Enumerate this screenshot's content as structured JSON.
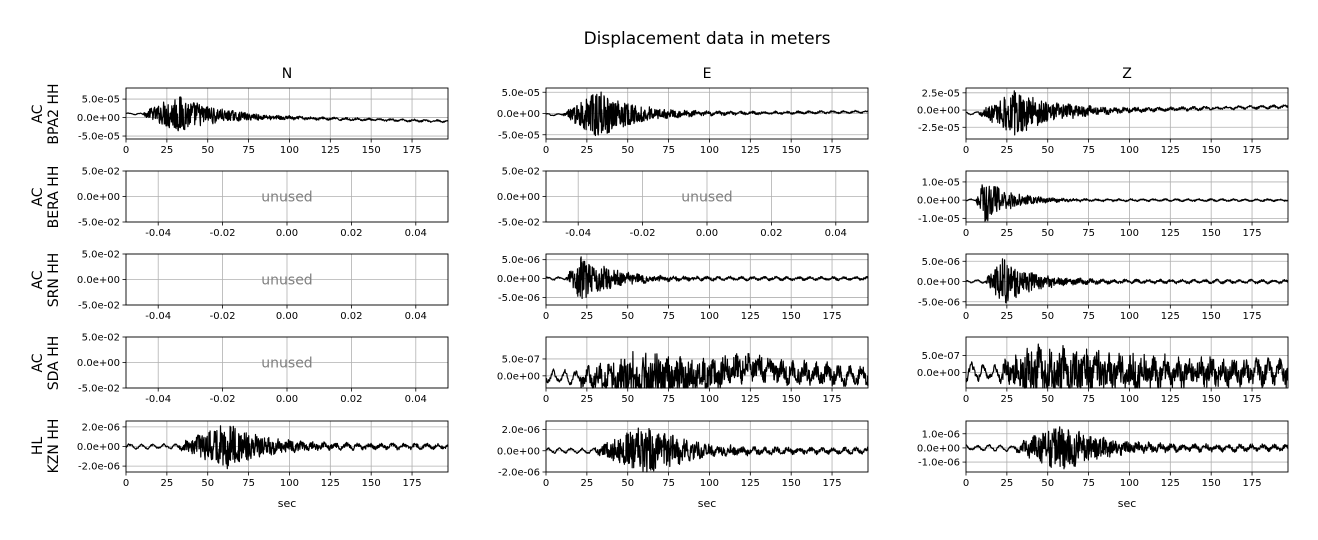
{
  "title": "Displacement data in meters",
  "columns": [
    "N",
    "E",
    "Z"
  ],
  "rows": [
    [
      "AC",
      "BPA2 HH"
    ],
    [
      "AC",
      "BERA HH"
    ],
    [
      "AC",
      "SRN HH"
    ],
    [
      "AC",
      "SDA HH"
    ],
    [
      "HL",
      "KZN HH"
    ]
  ],
  "xlabel": "sec",
  "unused_label": "unused",
  "chart_data": [
    {
      "type": "line",
      "row": 0,
      "col": 0,
      "station": "AC BPA2 HH",
      "component": "N",
      "xlim": [
        0,
        197
      ],
      "ylim": [
        -5.8e-05,
        8e-05
      ],
      "xticks": [
        "0",
        "25",
        "50",
        "75",
        "100",
        "125",
        "150",
        "175"
      ],
      "yticks": [
        {
          "v": 5e-05,
          "t": "5.0e-05"
        },
        {
          "v": 0,
          "t": "0.0e+00"
        },
        {
          "v": -5e-05,
          "t": "-5.0e-05"
        }
      ],
      "waveform": {
        "onset": 10,
        "peak_t": 32,
        "decay": 22,
        "amp": 5.5e-05,
        "bg": 2e-06,
        "trend": [
          [
            0,
            1e-05
          ],
          [
            30,
            1e-05
          ],
          [
            90,
            0
          ],
          [
            197,
            -1e-05
          ]
        ]
      }
    },
    {
      "type": "line",
      "row": 0,
      "col": 1,
      "station": "AC BPA2 HH",
      "component": "E",
      "xlim": [
        0,
        197
      ],
      "ylim": [
        -6e-05,
        6e-05
      ],
      "xticks": [
        "0",
        "25",
        "50",
        "75",
        "100",
        "125",
        "150",
        "175"
      ],
      "yticks": [
        {
          "v": 5e-05,
          "t": "5.0e-05"
        },
        {
          "v": 0,
          "t": "0.0e+00"
        },
        {
          "v": -5e-05,
          "t": "-5.0e-05"
        }
      ],
      "waveform": {
        "onset": 10,
        "peak_t": 32,
        "decay": 22,
        "amp": 5.8e-05,
        "bg": 2e-06,
        "trend": [
          [
            0,
            -3e-06
          ],
          [
            100,
            0
          ],
          [
            197,
            4e-06
          ]
        ]
      }
    },
    {
      "type": "line",
      "row": 0,
      "col": 2,
      "station": "AC BPA2 HH",
      "component": "Z",
      "xlim": [
        0,
        197
      ],
      "ylim": [
        -4.2e-05,
        3.2e-05
      ],
      "xticks": [
        "0",
        "25",
        "50",
        "75",
        "100",
        "125",
        "150",
        "175"
      ],
      "yticks": [
        {
          "v": 2.5e-05,
          "t": "2.5e-05"
        },
        {
          "v": 0,
          "t": "0.0e+00"
        },
        {
          "v": -2.5e-05,
          "t": "-2.5e-05"
        }
      ],
      "waveform": {
        "onset": 8,
        "peak_t": 30,
        "decay": 24,
        "amp": 3.5e-05,
        "bg": 1.5e-06,
        "trend": [
          [
            0,
            -5e-06
          ],
          [
            197,
            5e-06
          ]
        ]
      }
    },
    {
      "type": "empty",
      "row": 1,
      "col": 0,
      "station": "AC BERA HH",
      "component": "N",
      "xlim": [
        -0.05,
        0.05
      ],
      "ylim": [
        -0.05,
        0.05
      ],
      "xticks": [
        "-0.04",
        "-0.02",
        "0.00",
        "0.02",
        "0.04"
      ],
      "yticks": [
        {
          "v": 0.05,
          "t": "5.0e-02"
        },
        {
          "v": 0,
          "t": "0.0e+00"
        },
        {
          "v": -0.05,
          "t": "-5.0e-02"
        }
      ]
    },
    {
      "type": "empty",
      "row": 1,
      "col": 1,
      "station": "AC BERA HH",
      "component": "E",
      "xlim": [
        -0.05,
        0.05
      ],
      "ylim": [
        -0.05,
        0.05
      ],
      "xticks": [
        "-0.04",
        "-0.02",
        "0.00",
        "0.02",
        "0.04"
      ],
      "yticks": [
        {
          "v": 0.05,
          "t": "5.0e-02"
        },
        {
          "v": 0,
          "t": "0.0e+00"
        },
        {
          "v": -0.05,
          "t": "-5.0e-02"
        }
      ]
    },
    {
      "type": "line",
      "row": 1,
      "col": 2,
      "station": "AC BERA HH",
      "component": "Z",
      "xlim": [
        0,
        197
      ],
      "ylim": [
        -1.2e-05,
        1.6e-05
      ],
      "xticks": [
        "0",
        "25",
        "50",
        "75",
        "100",
        "125",
        "150",
        "175"
      ],
      "yticks": [
        {
          "v": 1e-05,
          "t": "1.0e-05"
        },
        {
          "v": 0,
          "t": "0.0e+00"
        },
        {
          "v": -1e-05,
          "t": "-1.0e-05"
        }
      ],
      "waveform": {
        "onset": 6,
        "peak_t": 12,
        "decay": 14,
        "amp": 1.3e-05,
        "bg": 4e-07,
        "trend": [
          [
            0,
            0
          ],
          [
            197,
            0
          ]
        ]
      }
    },
    {
      "type": "empty",
      "row": 2,
      "col": 0,
      "station": "AC SRN HH",
      "component": "N",
      "xlim": [
        -0.05,
        0.05
      ],
      "ylim": [
        -0.05,
        0.05
      ],
      "xticks": [
        "-0.04",
        "-0.02",
        "0.00",
        "0.02",
        "0.04"
      ],
      "yticks": [
        {
          "v": 0.05,
          "t": "5.0e-02"
        },
        {
          "v": 0,
          "t": "0.0e+00"
        },
        {
          "v": -0.05,
          "t": "-5.0e-02"
        }
      ]
    },
    {
      "type": "line",
      "row": 2,
      "col": 1,
      "station": "AC SRN HH",
      "component": "E",
      "xlim": [
        0,
        197
      ],
      "ylim": [
        -7e-06,
        6.5e-06
      ],
      "xticks": [
        "0",
        "25",
        "50",
        "75",
        "100",
        "125",
        "150",
        "175"
      ],
      "yticks": [
        {
          "v": 5e-06,
          "t": "5.0e-06"
        },
        {
          "v": 0,
          "t": "0.0e+00"
        },
        {
          "v": -5e-06,
          "t": "-5.0e-06"
        }
      ],
      "waveform": {
        "onset": 12,
        "peak_t": 22,
        "decay": 18,
        "amp": 6e-06,
        "bg": 3e-07,
        "trend": [
          [
            0,
            0
          ],
          [
            197,
            0
          ]
        ]
      }
    },
    {
      "type": "line",
      "row": 2,
      "col": 2,
      "station": "AC SRN HH",
      "component": "Z",
      "xlim": [
        0,
        197
      ],
      "ylim": [
        -5.8e-06,
        6.8e-06
      ],
      "xticks": [
        "0",
        "25",
        "50",
        "75",
        "100",
        "125",
        "150",
        "175"
      ],
      "yticks": [
        {
          "v": 5e-06,
          "t": "5.0e-06"
        },
        {
          "v": 0,
          "t": "0.0e+00"
        },
        {
          "v": -5e-06,
          "t": "-5.0e-06"
        }
      ],
      "waveform": {
        "onset": 12,
        "peak_t": 23,
        "decay": 16,
        "amp": 6e-06,
        "bg": 3e-07,
        "trend": [
          [
            0,
            0
          ],
          [
            197,
            0
          ]
        ]
      }
    },
    {
      "type": "empty",
      "row": 3,
      "col": 0,
      "station": "AC SDA HH",
      "component": "N",
      "xlim": [
        -0.05,
        0.05
      ],
      "ylim": [
        -0.05,
        0.05
      ],
      "xticks": [
        "-0.04",
        "-0.02",
        "0.00",
        "0.02",
        "0.04"
      ],
      "yticks": [
        {
          "v": 0.05,
          "t": "5.0e-02"
        },
        {
          "v": 0,
          "t": "0.0e+00"
        },
        {
          "v": -0.05,
          "t": "-5.0e-02"
        }
      ]
    },
    {
      "type": "line",
      "row": 3,
      "col": 1,
      "station": "AC SDA HH",
      "component": "E",
      "xlim": [
        0,
        197
      ],
      "ylim": [
        -3.6e-07,
        1.15e-06
      ],
      "xticks": [
        "0",
        "25",
        "50",
        "75",
        "100",
        "125",
        "150",
        "175"
      ],
      "yticks": [
        {
          "v": 5e-07,
          "t": "5.0e-07"
        },
        {
          "v": 0,
          "t": "0.0e+00"
        }
      ],
      "waveform": {
        "onset": 20,
        "peak_t": 55,
        "decay": 60,
        "amp": 6e-07,
        "bg": 1.5e-07,
        "trend": [
          [
            0,
            0
          ],
          [
            40,
            -1e-07
          ],
          [
            100,
            0
          ],
          [
            125,
            3e-07
          ],
          [
            150,
            1e-07
          ],
          [
            197,
            0
          ]
        ]
      }
    },
    {
      "type": "line",
      "row": 3,
      "col": 2,
      "station": "AC SDA HH",
      "component": "Z",
      "xlim": [
        0,
        197
      ],
      "ylim": [
        -4.6e-07,
        1.05e-06
      ],
      "xticks": [
        "0",
        "25",
        "50",
        "75",
        "100",
        "125",
        "150",
        "175"
      ],
      "yticks": [
        {
          "v": 5e-07,
          "t": "5.0e-07"
        },
        {
          "v": 0,
          "t": "0.0e+00"
        }
      ],
      "waveform": {
        "onset": 20,
        "peak_t": 45,
        "decay": 70,
        "amp": 6e-07,
        "bg": 2e-07,
        "trend": [
          [
            0,
            0
          ],
          [
            197,
            0
          ]
        ]
      }
    },
    {
      "type": "line",
      "row": 4,
      "col": 0,
      "station": "HL KZN HH",
      "component": "N",
      "xlim": [
        0,
        197
      ],
      "ylim": [
        -2.6e-06,
        2.6e-06
      ],
      "xticks": [
        "0",
        "25",
        "50",
        "75",
        "100",
        "125",
        "150",
        "175"
      ],
      "yticks": [
        {
          "v": 2e-06,
          "t": "2.0e-06"
        },
        {
          "v": 0,
          "t": "0.0e+00"
        },
        {
          "v": -2e-06,
          "t": "-2.0e-06"
        }
      ],
      "waveform": {
        "onset": 32,
        "peak_t": 62,
        "decay": 22,
        "amp": 2.2e-06,
        "bg": 1.8e-07,
        "trend": [
          [
            0,
            0
          ],
          [
            197,
            0
          ]
        ]
      }
    },
    {
      "type": "line",
      "row": 4,
      "col": 1,
      "station": "HL KZN HH",
      "component": "E",
      "xlim": [
        0,
        197
      ],
      "ylim": [
        -2e-06,
        2.8e-06
      ],
      "xticks": [
        "0",
        "25",
        "50",
        "75",
        "100",
        "125",
        "150",
        "175"
      ],
      "yticks": [
        {
          "v": 2e-06,
          "t": "2.0e-06"
        },
        {
          "v": 0,
          "t": "0.0e+00"
        },
        {
          "v": -2e-06,
          "t": "-2.0e-06"
        }
      ],
      "waveform": {
        "onset": 30,
        "peak_t": 62,
        "decay": 22,
        "amp": 2.4e-06,
        "bg": 1.8e-07,
        "trend": [
          [
            0,
            0
          ],
          [
            197,
            0
          ]
        ]
      }
    },
    {
      "type": "line",
      "row": 4,
      "col": 2,
      "station": "HL KZN HH",
      "component": "Z",
      "xlim": [
        0,
        197
      ],
      "ylim": [
        -1.7e-06,
        1.9e-06
      ],
      "xticks": [
        "0",
        "25",
        "50",
        "75",
        "100",
        "125",
        "150",
        "175"
      ],
      "yticks": [
        {
          "v": 1e-06,
          "t": "1.0e-06"
        },
        {
          "v": 0,
          "t": "0.0e+00"
        },
        {
          "v": -1e-06,
          "t": "-1.0e-06"
        }
      ],
      "waveform": {
        "onset": 30,
        "peak_t": 58,
        "decay": 22,
        "amp": 1.6e-06,
        "bg": 1.5e-07,
        "trend": [
          [
            0,
            0
          ],
          [
            197,
            0
          ]
        ]
      }
    }
  ]
}
